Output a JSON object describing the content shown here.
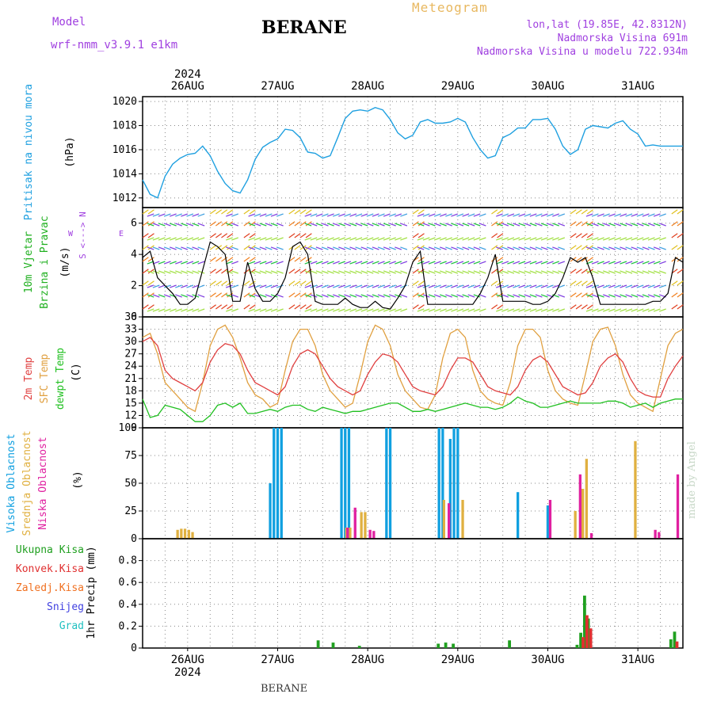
{
  "header": {
    "model_label": "Model",
    "model_name": "wrf-nmm_v3.9.1 e1km",
    "title": "BERANE",
    "meteogram_label": "Meteogram",
    "lonlat": "lon,lat (19.85E, 42.8312N)",
    "elevation": "Nadmorska Visina 691m",
    "model_elevation": "Nadmorska Visina u modelu 722.934m",
    "footer": "BERANE",
    "watermark": "made by Angel"
  },
  "time_axis": {
    "year": "2024",
    "days": [
      "26AUG",
      "27AUG",
      "28AUG",
      "29AUG",
      "30AUG",
      "31AUG"
    ],
    "start": "2024-08-25T12:00",
    "hours": 144
  },
  "colors": {
    "pressure": "#1fa0e0",
    "wind_label": "#20b020",
    "wind_speed": "#000000",
    "gust": "#e03030",
    "t2m": "#e04040",
    "tsfc": "#e0a040",
    "dewpoint": "#20c020",
    "cloud_high": "#10a0e0",
    "cloud_mid": "#e0b040",
    "cloud_low": "#e020a0",
    "precip_total": "#20a020",
    "precip_conv": "#e03030",
    "precip_snow_freeze": "#f07020",
    "precip_snow": "#4040e0",
    "precip_hail": "#20c0c0",
    "grid": "#888888"
  },
  "chart_data": [
    {
      "type": "line",
      "panel": "pressure",
      "ylabel_left": "Pritisak na nivou mora",
      "ylabel": "(hPa)",
      "ylim": [
        1011.2,
        1020.4
      ],
      "yticks": [
        1012,
        1014,
        1016,
        1018,
        1020
      ],
      "series": [
        {
          "hours": [
            0,
            2,
            4,
            6,
            8,
            10,
            12,
            14,
            16,
            18,
            20,
            22,
            24,
            26,
            28,
            30,
            32,
            34,
            36,
            38,
            40,
            42,
            44,
            46,
            48,
            50,
            52,
            54,
            56,
            58,
            60,
            62,
            64,
            66,
            68,
            70,
            72,
            74,
            76,
            78,
            80,
            82,
            84,
            86,
            88,
            90,
            92,
            94,
            96,
            98,
            100,
            102,
            104,
            106,
            108,
            110,
            112,
            114,
            116,
            118,
            120,
            122,
            124,
            126,
            128,
            130,
            132,
            134,
            136,
            138,
            140,
            142,
            144
          ],
          "values": [
            1013.5,
            1012.3,
            1012.0,
            1013.8,
            1014.8,
            1015.3,
            1015.6,
            1015.7,
            1016.3,
            1015.5,
            1014.2,
            1013.2,
            1012.6,
            1012.4,
            1013.5,
            1015.2,
            1016.2,
            1016.6,
            1016.9,
            1017.7,
            1017.6,
            1017.0,
            1015.8,
            1015.7,
            1015.3,
            1015.5,
            1017.0,
            1018.6,
            1019.2,
            1019.3,
            1019.2,
            1019.5,
            1019.3,
            1018.5,
            1017.4,
            1016.9,
            1017.2,
            1018.3,
            1018.5,
            1018.2,
            1018.2,
            1018.3,
            1018.6,
            1018.3,
            1017.0,
            1016.0,
            1015.3,
            1015.5,
            1017.0,
            1017.3,
            1017.8,
            1017.8,
            1018.5,
            1018.5,
            1018.6,
            1017.7,
            1016.3,
            1015.6,
            1016.0,
            1017.7,
            1018.0,
            1017.9,
            1017.8,
            1018.2,
            1018.4,
            1017.7,
            1017.3,
            1016.3,
            1016.4,
            1016.3,
            1016.3,
            1016.3,
            1016.3
          ]
        }
      ]
    },
    {
      "type": "line",
      "panel": "wind",
      "ylabel_left": [
        "10m Vjetar",
        "Brzina i Pravac"
      ],
      "ylabel": "(m/s)",
      "compass_n": "N",
      "compass_s": "S",
      "compass_w": "W",
      "compass_e": "E",
      "ylim": [
        0,
        7
      ],
      "yticks": [
        0,
        2,
        4,
        6
      ],
      "series": [
        {
          "name": "speed",
          "hours": [
            0,
            2,
            4,
            6,
            8,
            10,
            12,
            14,
            16,
            18,
            20,
            22,
            24,
            26,
            28,
            30,
            32,
            34,
            36,
            38,
            40,
            42,
            44,
            46,
            48,
            50,
            52,
            54,
            56,
            58,
            60,
            62,
            64,
            66,
            68,
            70,
            72,
            74,
            76,
            78,
            80,
            82,
            84,
            86,
            88,
            90,
            92,
            94,
            96,
            98,
            100,
            102,
            104,
            106,
            108,
            110,
            112,
            114,
            116,
            118,
            120,
            122,
            124,
            126,
            128,
            130,
            132,
            134,
            136,
            138,
            140,
            142,
            144
          ],
          "values": [
            3.8,
            4.2,
            2.5,
            2.0,
            1.5,
            0.8,
            0.8,
            1.2,
            3.0,
            4.8,
            4.5,
            4.0,
            1.0,
            1.0,
            3.5,
            1.8,
            1.0,
            1.0,
            1.5,
            2.5,
            4.5,
            4.8,
            4.0,
            1.0,
            0.8,
            0.8,
            0.8,
            1.2,
            0.8,
            0.6,
            0.6,
            1.0,
            0.6,
            0.5,
            1.2,
            2.0,
            3.5,
            4.2,
            0.8,
            0.8,
            0.8,
            0.8,
            0.8,
            0.8,
            0.8,
            1.5,
            2.5,
            4.0,
            1.0,
            1.0,
            1.0,
            1.0,
            0.8,
            0.8,
            1.0,
            1.5,
            2.5,
            3.8,
            3.5,
            3.8,
            2.5,
            0.8,
            0.8,
            0.8,
            0.8,
            0.8,
            0.8,
            0.8,
            1.0,
            1.0,
            1.5,
            3.8,
            3.5
          ]
        }
      ]
    },
    {
      "type": "line",
      "panel": "temperature",
      "ylabel_left": [
        "2m Temp",
        "SFC Temp",
        "dewpt Temp"
      ],
      "ylabel": "(C)",
      "ylim": [
        9,
        36
      ],
      "yticks": [
        9,
        12,
        15,
        18,
        21,
        24,
        27,
        30,
        33,
        36
      ],
      "series": [
        {
          "name": "2m Temp",
          "hours": [
            0,
            2,
            4,
            6,
            8,
            10,
            12,
            14,
            16,
            18,
            20,
            22,
            24,
            26,
            28,
            30,
            32,
            34,
            36,
            38,
            40,
            42,
            44,
            46,
            48,
            50,
            52,
            54,
            56,
            58,
            60,
            62,
            64,
            66,
            68,
            70,
            72,
            74,
            76,
            78,
            80,
            82,
            84,
            86,
            88,
            90,
            92,
            94,
            96,
            98,
            100,
            102,
            104,
            106,
            108,
            110,
            112,
            114,
            116,
            118,
            120,
            122,
            124,
            126,
            128,
            130,
            132,
            134,
            136,
            138,
            140,
            142,
            144
          ],
          "values": [
            30,
            31,
            29,
            23,
            21,
            20,
            19,
            18,
            20,
            25,
            28,
            29.5,
            29,
            27,
            23,
            20,
            19,
            18,
            17,
            19,
            24,
            27,
            28,
            27,
            24,
            21,
            19,
            18,
            17,
            18,
            22,
            25,
            27,
            26.5,
            25,
            22,
            19,
            18,
            17.5,
            17,
            19,
            23,
            26,
            26,
            25,
            22,
            19,
            18,
            17.5,
            17,
            19,
            23,
            25.5,
            26.5,
            25,
            22,
            19,
            18,
            17,
            17.5,
            20,
            24,
            26,
            27,
            25,
            21,
            18,
            17,
            16.5,
            16.5,
            21,
            24,
            26.5
          ]
        },
        {
          "name": "SFC Temp",
          "hours": [
            0,
            2,
            4,
            6,
            8,
            10,
            12,
            14,
            16,
            18,
            20,
            22,
            24,
            26,
            28,
            30,
            32,
            34,
            36,
            38,
            40,
            42,
            44,
            46,
            48,
            50,
            52,
            54,
            56,
            58,
            60,
            62,
            64,
            66,
            68,
            70,
            72,
            74,
            76,
            78,
            80,
            82,
            84,
            86,
            88,
            90,
            92,
            94,
            96,
            98,
            100,
            102,
            104,
            106,
            108,
            110,
            112,
            114,
            116,
            118,
            120,
            122,
            124,
            126,
            128,
            130,
            132,
            134,
            136,
            138,
            140,
            142,
            144
          ],
          "values": [
            31,
            32,
            27,
            20,
            18,
            16,
            14,
            13,
            20,
            29,
            33,
            34,
            31,
            26,
            20,
            17,
            16,
            14,
            15,
            23,
            30,
            33,
            33,
            29,
            22,
            18,
            16,
            14,
            15,
            22,
            30,
            34,
            33,
            29,
            22,
            18,
            16,
            14,
            13.5,
            17,
            26,
            32,
            33,
            31,
            23,
            18,
            16,
            15,
            14.5,
            20,
            29,
            33,
            33,
            31,
            23,
            18,
            16,
            15,
            14.5,
            22,
            30,
            33,
            33.5,
            29,
            22,
            17,
            15,
            14,
            13,
            21,
            29,
            32,
            33
          ]
        },
        {
          "name": "dewpt Temp",
          "hours": [
            0,
            2,
            4,
            6,
            8,
            10,
            12,
            14,
            16,
            18,
            20,
            22,
            24,
            26,
            28,
            30,
            32,
            34,
            36,
            38,
            40,
            42,
            44,
            46,
            48,
            50,
            52,
            54,
            56,
            58,
            60,
            62,
            64,
            66,
            68,
            70,
            72,
            74,
            76,
            78,
            80,
            82,
            84,
            86,
            88,
            90,
            92,
            94,
            96,
            98,
            100,
            102,
            104,
            106,
            108,
            110,
            112,
            114,
            116,
            118,
            120,
            122,
            124,
            126,
            128,
            130,
            132,
            134,
            136,
            138,
            140,
            142,
            144
          ],
          "values": [
            16,
            11.5,
            12,
            14.5,
            14,
            13.5,
            12,
            10.5,
            10.5,
            12,
            14.5,
            15,
            14,
            15,
            12.5,
            12.5,
            13,
            13.5,
            13,
            14,
            14.5,
            14.5,
            13.5,
            13,
            14,
            13.5,
            13,
            12.5,
            13,
            13,
            13.5,
            14,
            14.5,
            15,
            15,
            14,
            13,
            13,
            13.5,
            13,
            13.5,
            14,
            14.5,
            15,
            14.5,
            14,
            14,
            13.5,
            14,
            15,
            16.5,
            15.5,
            15,
            14,
            14,
            14.5,
            15,
            15.5,
            15,
            15,
            15,
            15,
            15.5,
            15.5,
            15,
            14,
            14.5,
            15,
            14,
            15,
            15.5,
            16,
            16
          ]
        }
      ]
    },
    {
      "type": "bar",
      "panel": "clouds",
      "ylabel_left": [
        "Visoka Oblacnost",
        "Srednja Oblacnost",
        "Niska Oblacnost"
      ],
      "ylabel": "(%)",
      "ylim": [
        0,
        100
      ],
      "yticks": [
        0,
        25,
        50,
        75,
        100
      ],
      "series": [
        {
          "name": "Visoka Oblacnost",
          "hours": [
            34,
            35,
            36,
            37,
            53,
            54,
            55,
            65,
            66,
            79,
            80,
            82,
            83,
            84,
            100,
            108
          ],
          "values": [
            50,
            100,
            100,
            100,
            100,
            100,
            100,
            100,
            100,
            100,
            100,
            90,
            100,
            100,
            42,
            30
          ]
        },
        {
          "name": "Srednja Oblacnost",
          "hours": [
            9,
            10,
            11,
            12,
            13,
            54,
            55,
            58,
            59,
            80,
            85,
            115,
            117,
            118,
            131
          ],
          "values": [
            8,
            9,
            9,
            8,
            6,
            10,
            10,
            24,
            24,
            35,
            35,
            25,
            45,
            72,
            88
          ]
        },
        {
          "name": "Niska Oblacnost",
          "hours": [
            54,
            56,
            60,
            61,
            81,
            108,
            116,
            119,
            136,
            137,
            142
          ],
          "values": [
            10,
            28,
            8,
            7,
            32,
            35,
            58,
            5,
            8,
            6,
            58
          ]
        }
      ]
    },
    {
      "type": "bar",
      "panel": "precip",
      "ylabel_left": [
        "Ukupna Kisa",
        "Konvek.Kisa",
        "Zaledj.Kisa",
        "Snijeg",
        "Grad"
      ],
      "ylabel": "1hr Precip (mm)",
      "ylim": [
        0,
        1.0
      ],
      "yticks": [
        0,
        0.2,
        0.4,
        0.6,
        0.8
      ],
      "series": [
        {
          "name": "Ukupna Kisa",
          "hours": [
            47,
            51,
            58,
            79,
            81,
            83,
            98,
            116,
            117,
            118,
            119,
            141,
            142
          ],
          "values": [
            0.07,
            0.05,
            0.02,
            0.04,
            0.05,
            0.04,
            0.07,
            0.03,
            0.14,
            0.48,
            0.27,
            0.08,
            0.15
          ]
        },
        {
          "name": "Konvek.Kisa",
          "hours": [
            117,
            118,
            119,
            142
          ],
          "values": [
            0.1,
            0.3,
            0.18,
            0.06
          ]
        }
      ]
    }
  ]
}
